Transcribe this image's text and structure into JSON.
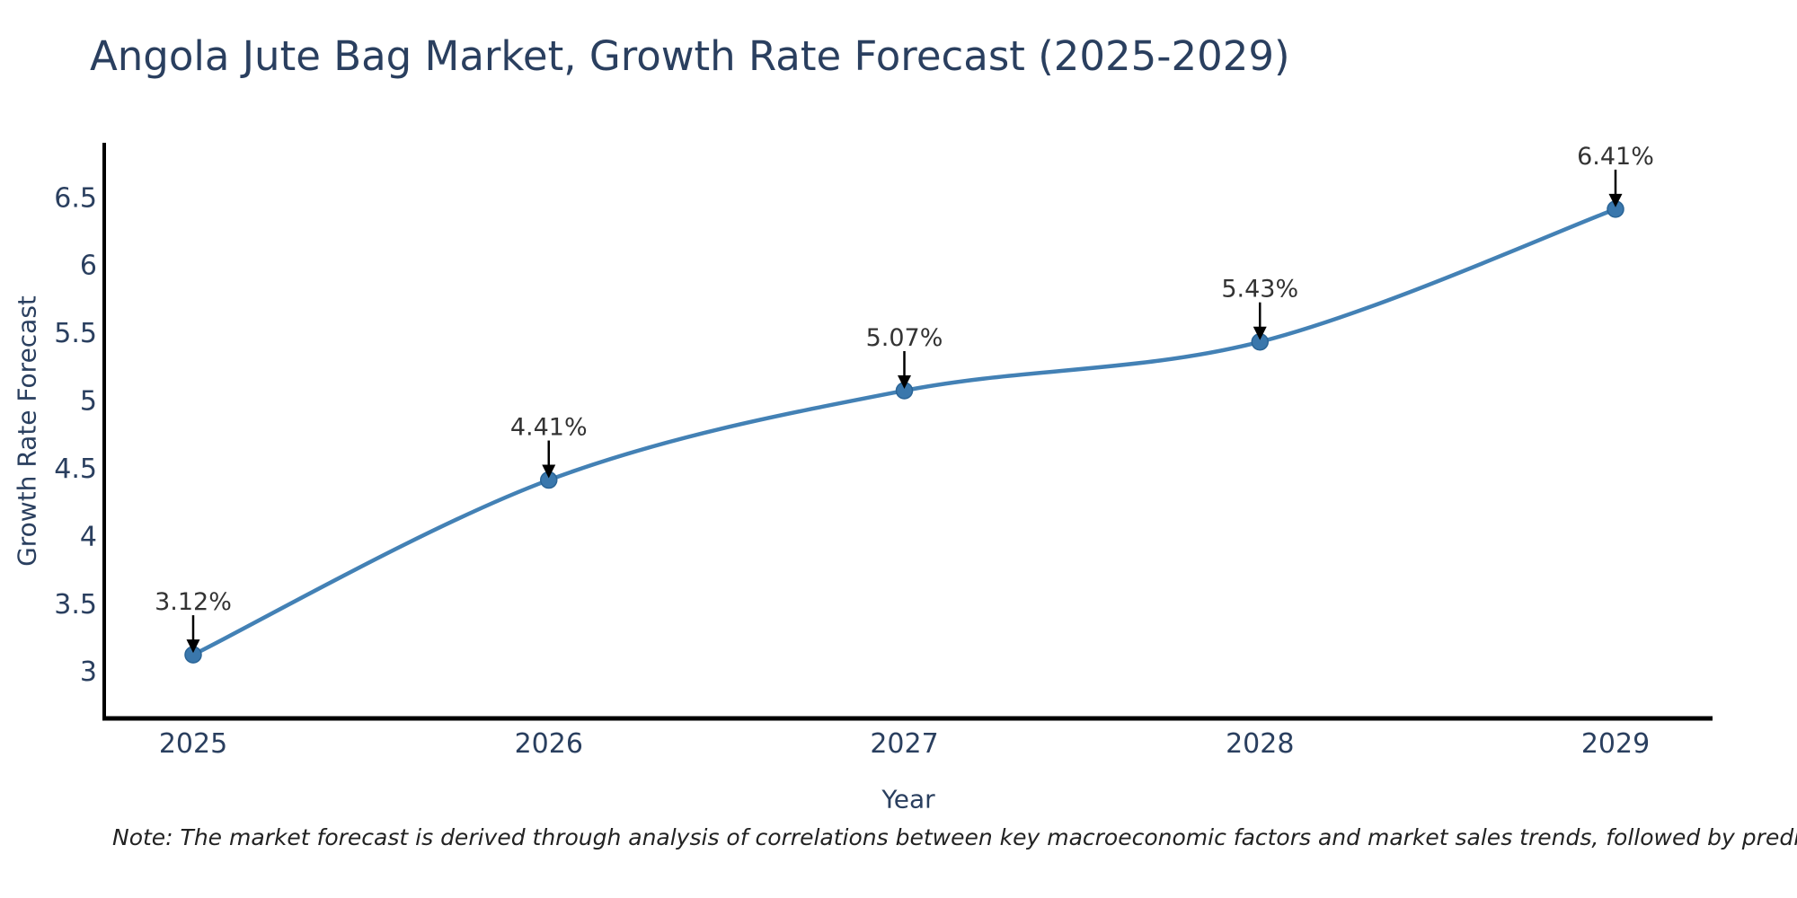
{
  "page": {
    "background": "#ffffff"
  },
  "chart": {
    "title": "Angola Jute Bag Market, Growth Rate Forecast (2025-2029)",
    "xlabel": "Year",
    "ylabel": "Growth Rate Forecast",
    "note": "Note: The market forecast is derived through analysis of correlations between key macroeconomic factors and market sales trends, followed by predictive modeling to project future sales"
  },
  "chart_data": {
    "type": "line",
    "title": "Angola Jute Bag Market, Growth Rate Forecast (2025-2029)",
    "xlabel": "Year",
    "ylabel": "Growth Rate Forecast",
    "categories": [
      "2025",
      "2026",
      "2027",
      "2028",
      "2029"
    ],
    "series": [
      {
        "name": "Growth Rate Forecast",
        "values": [
          3.12,
          4.41,
          5.07,
          5.43,
          6.41
        ],
        "labels": [
          "3.12%",
          "4.41%",
          "5.07%",
          "5.43%",
          "6.41%"
        ]
      }
    ],
    "y_ticks": [
      3,
      3.5,
      4,
      4.5,
      5,
      5.5,
      6,
      6.5
    ],
    "ylim": [
      2.65,
      6.9
    ],
    "grid": false,
    "legend": false,
    "line_shape": "spline",
    "annotation_style": "value label with black arrow pointing down to each marker",
    "colors": {
      "line": "#4381b5",
      "marker_fill": "#3a77ac",
      "marker_edge": "#2a6496",
      "axis": "#000000",
      "tick_text": "#2a3f5f",
      "title_text": "#2a3f5f",
      "annotation_text": "#333333",
      "arrow": "#000000",
      "background": "#ffffff"
    }
  }
}
